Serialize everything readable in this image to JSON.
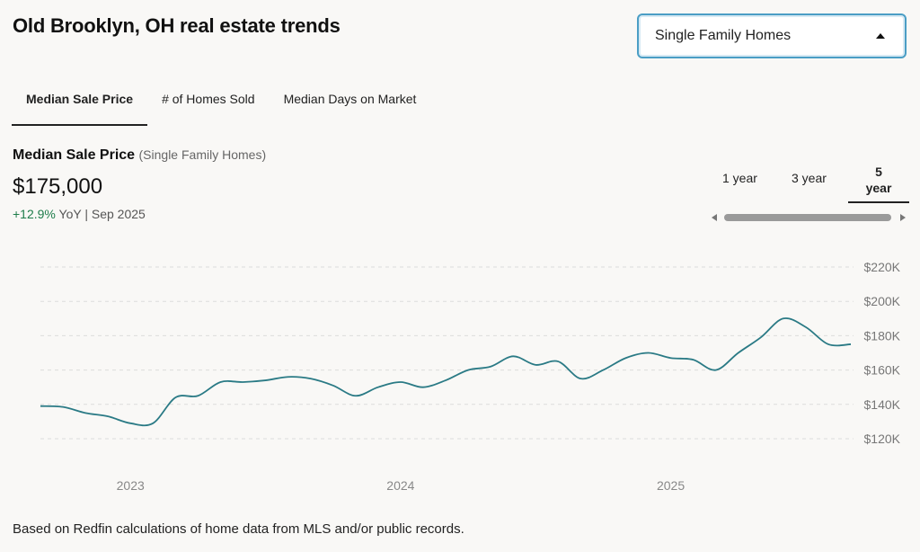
{
  "page_title": "Old Brooklyn, OH real estate trends",
  "property_type": {
    "selected": "Single Family Homes"
  },
  "tabs": [
    {
      "label": "Median Sale Price"
    },
    {
      "label": "# of Homes Sold"
    },
    {
      "label": "Median Days on Market"
    }
  ],
  "metric": {
    "label": "Median Sale Price",
    "sublabel": "(Single Family Homes)",
    "value": "$175,000",
    "change": "+12.9%",
    "change_suffix": "YoY",
    "separator": "|",
    "period": "Sep 2025"
  },
  "range": {
    "options": [
      "1 year",
      "3 year",
      "5 year"
    ],
    "selected": "5 year"
  },
  "colors": {
    "line": "#2a7a85",
    "grid": "#dcdcdc",
    "positive": "#1e7d4b",
    "accent": "#4b9ec5"
  },
  "chart_data": {
    "type": "line",
    "x": [
      "2022-09",
      "2022-10",
      "2022-11",
      "2022-12",
      "2023-01",
      "2023-02",
      "2023-03",
      "2023-04",
      "2023-05",
      "2023-06",
      "2023-07",
      "2023-08",
      "2023-09",
      "2023-10",
      "2023-11",
      "2023-12",
      "2024-01",
      "2024-02",
      "2024-03",
      "2024-04",
      "2024-05",
      "2024-06",
      "2024-07",
      "2024-08",
      "2024-09",
      "2024-10",
      "2024-11",
      "2024-12",
      "2025-01",
      "2025-02",
      "2025-03",
      "2025-04",
      "2025-05",
      "2025-06",
      "2025-07",
      "2025-08",
      "2025-09"
    ],
    "series": [
      {
        "values": [
          139000,
          138500,
          135000,
          133000,
          129000,
          129000,
          144000,
          145000,
          153000,
          153000,
          154000,
          156000,
          155000,
          151000,
          145000,
          150000,
          153000,
          150000,
          154000,
          160000,
          162000,
          168000,
          163000,
          165000,
          155000,
          160000,
          167000,
          170000,
          167000,
          166000,
          160000,
          170000,
          179000,
          190000,
          185000,
          175000,
          175000
        ]
      }
    ],
    "x_ticks": [
      "2023",
      "2024",
      "2025"
    ],
    "y_ticks": [
      "$120K",
      "$140K",
      "$160K",
      "$180K",
      "$200K",
      "$220K"
    ],
    "ylim": [
      120000,
      220000
    ],
    "grid": true
  },
  "footnote": "Based on Redfin calculations of home data from MLS and/or public records."
}
